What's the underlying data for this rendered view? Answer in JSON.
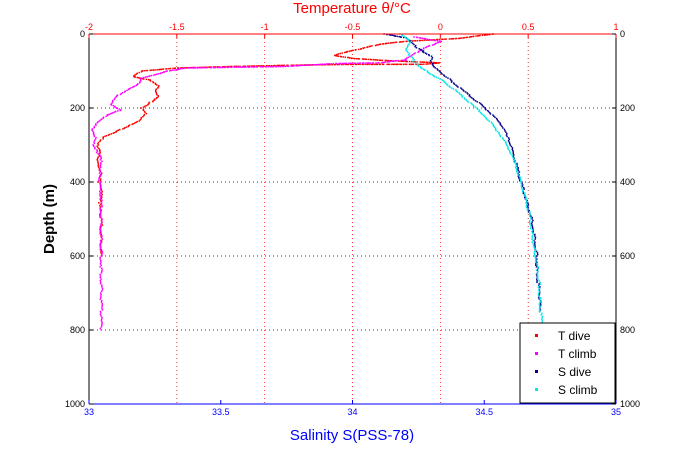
{
  "chart_data": {
    "type": "scatter",
    "title": "Temperature θ/°C",
    "top_axis": {
      "label": "Temperature θ/°C",
      "range": [
        -2,
        1
      ],
      "ticks": [
        -2,
        -1.5,
        -1,
        -0.5,
        0,
        0.5,
        1
      ],
      "tick_labels": [
        "-2",
        "-1.5",
        "-1",
        "-0.5",
        "0",
        "0.5",
        "1"
      ],
      "color": "#ff0000"
    },
    "bottom_axis": {
      "label": "Salinity S(PSS-78)",
      "range": [
        33,
        35
      ],
      "ticks": [
        33,
        33.5,
        34,
        34.5,
        35
      ],
      "tick_labels": [
        "33",
        "33.5",
        "34",
        "34.5",
        "35"
      ],
      "color": "#0000ff"
    },
    "y_axis": {
      "label": "Depth (m)",
      "range": [
        0,
        1000
      ],
      "inverted": true,
      "ticks": [
        0,
        200,
        400,
        600,
        800,
        1000
      ],
      "tick_labels": [
        "0",
        "200",
        "400",
        "600",
        "800",
        "1000"
      ]
    },
    "grid": "dotted",
    "legend_position": "bottom-right",
    "series": [
      {
        "name": "T dive",
        "axis": "temperature",
        "color": "#ff0000",
        "points": [
          [
            0.3,
            0
          ],
          [
            0.1,
            12
          ],
          [
            -0.2,
            20
          ],
          [
            -0.35,
            28
          ],
          [
            -0.45,
            40
          ],
          [
            -0.55,
            50
          ],
          [
            -0.6,
            58
          ],
          [
            -0.5,
            66
          ],
          [
            -0.3,
            72
          ],
          [
            0.0,
            78
          ],
          [
            -0.1,
            82
          ],
          [
            -0.5,
            82
          ],
          [
            -0.8,
            84
          ],
          [
            -1.2,
            88
          ],
          [
            -1.5,
            92
          ],
          [
            -1.7,
            100
          ],
          [
            -1.75,
            115
          ],
          [
            -1.65,
            125
          ],
          [
            -1.6,
            140
          ],
          [
            -1.62,
            155
          ],
          [
            -1.6,
            170
          ],
          [
            -1.65,
            185
          ],
          [
            -1.7,
            200
          ],
          [
            -1.68,
            215
          ],
          [
            -1.72,
            235
          ],
          [
            -1.78,
            250
          ],
          [
            -1.85,
            265
          ],
          [
            -1.92,
            280
          ],
          [
            -1.95,
            300
          ],
          [
            -1.93,
            320
          ],
          [
            -1.95,
            340
          ],
          [
            -1.94,
            360
          ],
          [
            -1.93,
            380
          ],
          [
            -1.94,
            400
          ],
          [
            -1.93,
            430
          ],
          [
            -1.94,
            460
          ],
          [
            -1.93,
            500
          ],
          [
            -1.93,
            550
          ],
          [
            -1.93,
            600
          ]
        ]
      },
      {
        "name": "T climb",
        "axis": "temperature",
        "color": "#ff00ff",
        "points": [
          [
            -0.15,
            8
          ],
          [
            0.0,
            20
          ],
          [
            -0.1,
            40
          ],
          [
            -0.2,
            70
          ],
          [
            -0.35,
            78
          ],
          [
            -0.6,
            80
          ],
          [
            -0.9,
            88
          ],
          [
            -1.2,
            90
          ],
          [
            -1.45,
            92
          ],
          [
            -1.55,
            100
          ],
          [
            -1.7,
            120
          ],
          [
            -1.72,
            135
          ],
          [
            -1.78,
            150
          ],
          [
            -1.85,
            170
          ],
          [
            -1.88,
            190
          ],
          [
            -1.82,
            205
          ],
          [
            -1.9,
            220
          ],
          [
            -1.95,
            240
          ],
          [
            -1.98,
            260
          ],
          [
            -1.96,
            280
          ],
          [
            -1.97,
            300
          ],
          [
            -1.95,
            320
          ],
          [
            -1.93,
            340
          ],
          [
            -1.94,
            360
          ],
          [
            -1.94,
            400
          ],
          [
            -1.93,
            450
          ],
          [
            -1.93,
            500
          ],
          [
            -1.93,
            550
          ],
          [
            -1.93,
            600
          ],
          [
            -1.93,
            650
          ],
          [
            -1.93,
            700
          ],
          [
            -1.93,
            750
          ],
          [
            -1.93,
            800
          ]
        ]
      },
      {
        "name": "S dive",
        "axis": "salinity",
        "color": "#00008b",
        "points": [
          [
            34.12,
            0
          ],
          [
            34.2,
            10
          ],
          [
            34.22,
            20
          ],
          [
            34.25,
            40
          ],
          [
            34.3,
            60
          ],
          [
            34.3,
            80
          ],
          [
            34.33,
            100
          ],
          [
            34.38,
            130
          ],
          [
            34.45,
            170
          ],
          [
            34.52,
            210
          ],
          [
            34.57,
            250
          ],
          [
            34.6,
            300
          ],
          [
            34.62,
            350
          ],
          [
            34.64,
            400
          ],
          [
            34.66,
            450
          ],
          [
            34.68,
            500
          ],
          [
            34.69,
            550
          ],
          [
            34.7,
            600
          ],
          [
            34.7,
            650
          ],
          [
            34.71,
            700
          ],
          [
            34.71,
            750
          ]
        ]
      },
      {
        "name": "S climb",
        "axis": "salinity",
        "color": "#00e5e5",
        "points": [
          [
            34.18,
            0
          ],
          [
            34.22,
            20
          ],
          [
            34.2,
            40
          ],
          [
            34.22,
            60
          ],
          [
            34.24,
            80
          ],
          [
            34.28,
            100
          ],
          [
            34.35,
            130
          ],
          [
            34.42,
            170
          ],
          [
            34.5,
            220
          ],
          [
            34.56,
            270
          ],
          [
            34.6,
            320
          ],
          [
            34.63,
            380
          ],
          [
            34.65,
            430
          ],
          [
            34.67,
            480
          ],
          [
            34.68,
            530
          ],
          [
            34.69,
            580
          ],
          [
            34.7,
            630
          ],
          [
            34.71,
            680
          ],
          [
            34.71,
            730
          ],
          [
            34.72,
            780
          ],
          [
            34.72,
            800
          ]
        ]
      }
    ]
  }
}
